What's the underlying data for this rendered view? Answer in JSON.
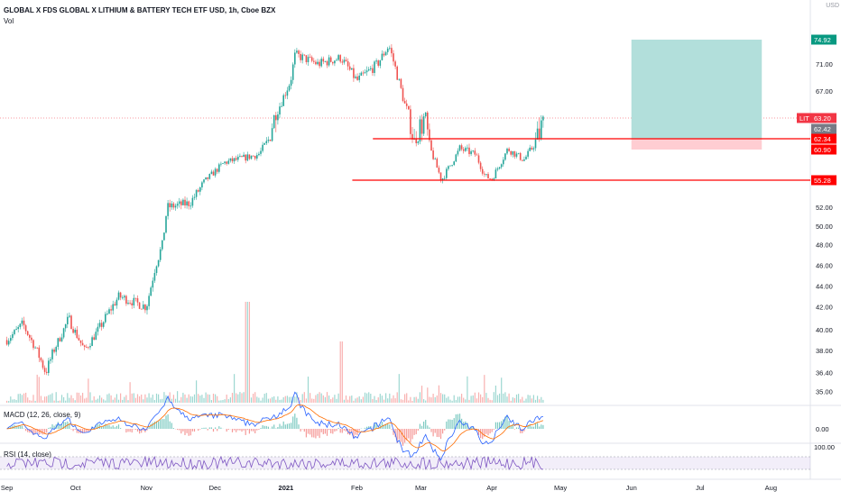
{
  "header": {
    "title": "GLOBAL X FDS GLOBAL X LITHIUM & BATTERY TECH ETF USD, 1h, Cboe BZX",
    "volume_label": "Vol",
    "currency": "USD"
  },
  "panes": {
    "macd_label": "MACD (12, 26, close, 9)",
    "macd_tick": "0.00",
    "rsi_label": "RSI (14, close)",
    "rsi_tick": "100.00"
  },
  "chart_data": {
    "type": "candlestick",
    "symbol": "LIT",
    "x_axis_labels": [
      "Sep",
      "Oct",
      "Nov",
      "Dec",
      "2021",
      "Feb",
      "Mar",
      "Apr",
      "May",
      "Jun",
      "Jul",
      "Aug"
    ],
    "y_axis_ticks": [
      35.0,
      36.4,
      38.0,
      40.0,
      42.0,
      44.0,
      46.0,
      48.0,
      50.0,
      52.0,
      67.0,
      71.0
    ],
    "price_path": [
      {
        "date": "2020-09-01",
        "price": 39.0
      },
      {
        "date": "2020-09-08",
        "price": 40.5
      },
      {
        "date": "2020-09-18",
        "price": 36.4
      },
      {
        "date": "2020-09-28",
        "price": 41.0
      },
      {
        "date": "2020-10-05",
        "price": 38.0
      },
      {
        "date": "2020-10-20",
        "price": 43.0
      },
      {
        "date": "2020-11-01",
        "price": 42.0
      },
      {
        "date": "2020-11-05",
        "price": 46.0
      },
      {
        "date": "2020-11-08",
        "price": 48.0
      },
      {
        "date": "2020-11-10",
        "price": 52.0
      },
      {
        "date": "2020-11-20",
        "price": 52.5
      },
      {
        "date": "2020-12-05",
        "price": 58.5
      },
      {
        "date": "2020-12-20",
        "price": 60.0
      },
      {
        "date": "2020-12-28",
        "price": 64.0
      },
      {
        "date": "2021-01-03",
        "price": 68.5
      },
      {
        "date": "2021-01-05",
        "price": 72.5
      },
      {
        "date": "2021-01-15",
        "price": 71.0
      },
      {
        "date": "2021-01-25",
        "price": 72.0
      },
      {
        "date": "2021-02-01",
        "price": 68.5
      },
      {
        "date": "2021-02-10",
        "price": 71.0
      },
      {
        "date": "2021-02-15",
        "price": 74.0
      },
      {
        "date": "2021-02-22",
        "price": 65.0
      },
      {
        "date": "2021-02-26",
        "price": 62.0
      },
      {
        "date": "2021-03-03",
        "price": 63.5
      },
      {
        "date": "2021-03-10",
        "price": 55.3
      },
      {
        "date": "2021-03-18",
        "price": 61.0
      },
      {
        "date": "2021-03-25",
        "price": 60.0
      },
      {
        "date": "2021-03-29",
        "price": 56.0
      },
      {
        "date": "2021-04-01",
        "price": 55.5
      },
      {
        "date": "2021-04-08",
        "price": 61.0
      },
      {
        "date": "2021-04-15",
        "price": 59.0
      },
      {
        "date": "2021-04-20",
        "price": 62.0
      },
      {
        "date": "2021-04-24",
        "price": 63.2
      }
    ],
    "horizontal_lines": [
      {
        "price": 62.34,
        "color": "#ff0000",
        "from": "2021-02-08"
      },
      {
        "price": 55.28,
        "color": "#ff0000",
        "from": "2021-01-30"
      }
    ],
    "long_position": {
      "entry": 62.34,
      "target": 74.92,
      "stop": 60.9,
      "from": "2021-06-01",
      "to": "2021-07-28",
      "profit_color": "#b2dfdb",
      "loss_color": "#ffcdd2"
    },
    "price_labels": [
      {
        "text": "74.92",
        "color": "#089981"
      },
      {
        "text": "63.20",
        "color": "#f23645",
        "symbol": "LIT"
      },
      {
        "text": "62.42",
        "color": "#787b86"
      },
      {
        "text": "62.34",
        "color": "#ff0000"
      },
      {
        "text": "60.90",
        "color": "#ff0000"
      },
      {
        "text": "55.28",
        "color": "#ff0000"
      }
    ],
    "last_price": 63.2,
    "colors": {
      "up": "#26a69a",
      "down": "#ef5350",
      "macd": "#2962ff",
      "signal": "#ff6d00",
      "rsi": "#7e57c2"
    }
  }
}
